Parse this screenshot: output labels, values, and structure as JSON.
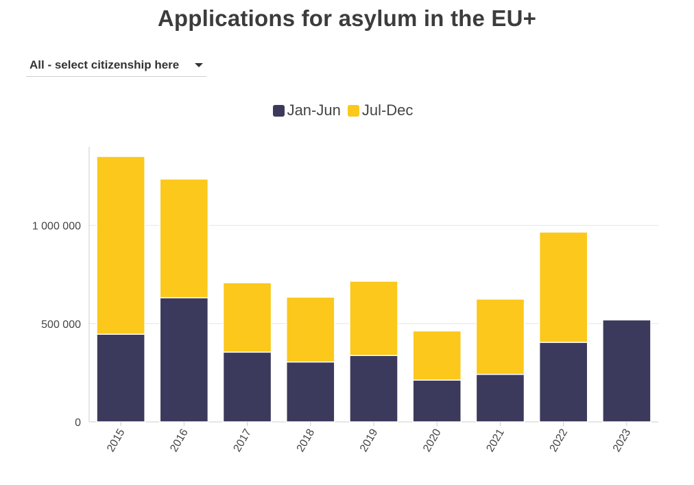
{
  "title": "Applications for asylum in the EU+",
  "filter": {
    "label": "All - select citizenship here"
  },
  "colors": {
    "jan_jun": "#3b3a5c",
    "jul_dec": "#fbc81b",
    "grid": "#e6e6e6",
    "axis": "#cccccc"
  },
  "chart_data": {
    "type": "bar",
    "stacked": true,
    "title": "",
    "xlabel": "",
    "ylabel": "",
    "categories": [
      "2015",
      "2016",
      "2017",
      "2018",
      "2019",
      "2020",
      "2021",
      "2022",
      "2023"
    ],
    "series": [
      {
        "name": "Jan-Jun",
        "color": "#3b3a5c",
        "values": [
          446000,
          632000,
          355000,
          305000,
          338000,
          213000,
          242000,
          405000,
          519000
        ]
      },
      {
        "name": "Jul-Dec",
        "color": "#fbc81b",
        "values": [
          905000,
          604000,
          353000,
          330000,
          378000,
          250000,
          383000,
          561000,
          null
        ]
      }
    ],
    "ylim": [
      0,
      1400000
    ],
    "yticks": [
      0,
      500000,
      1000000
    ],
    "ytick_labels": [
      "0",
      "500 000",
      "1 000 000"
    ],
    "grid": true,
    "legend": "top-center"
  }
}
